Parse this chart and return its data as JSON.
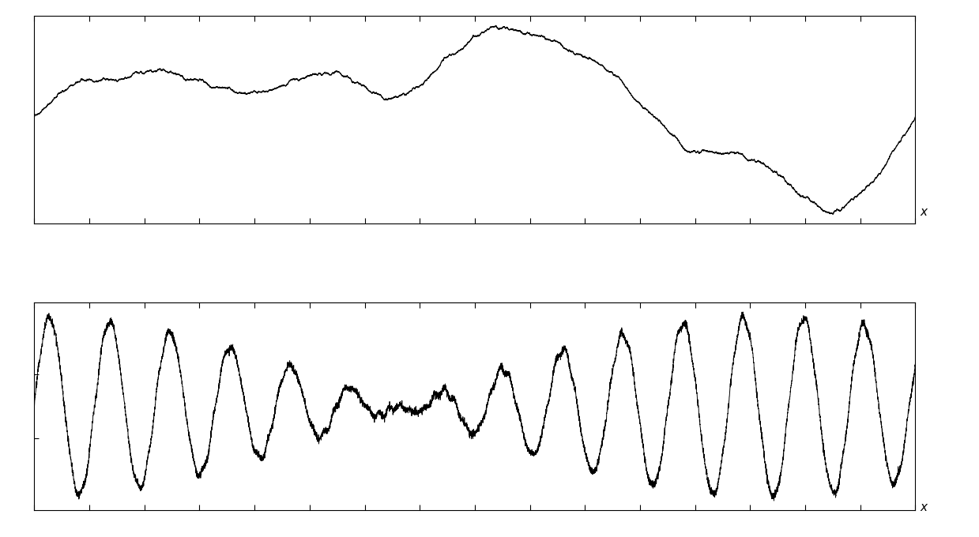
{
  "background_color": "#ffffff",
  "line_color": "#000000",
  "xlabel": "x",
  "top_plot": {
    "base_freq": 1.0,
    "ripple_freq": 8,
    "noise_amp": 0.03
  },
  "bottom_plot": {
    "freq1": 14.0,
    "freq2": 15.2,
    "noise_amp": 0.08,
    "amplitude": 1.0
  },
  "tick_count": 16,
  "xlabel_fontsize": 11,
  "xlabel_style": "italic"
}
